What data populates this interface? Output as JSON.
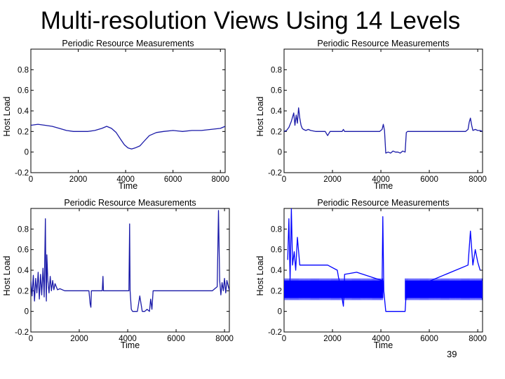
{
  "slide": {
    "title": "Multi-resolution Views Using 14 Levels",
    "page_number": "39"
  },
  "colors": {
    "series": "#1a1aa8",
    "noise": "#0000ff",
    "axis": "#000000"
  },
  "chart_data": [
    {
      "type": "line",
      "panel": "top-left",
      "title": "Periodic Resource Measurements",
      "xlabel": "Time",
      "ylabel": "Host Load",
      "xlim": [
        0,
        8200
      ],
      "ylim": [
        -0.2,
        1.0
      ],
      "xticks": [
        "0",
        "2000",
        "4000",
        "6000",
        "8000"
      ],
      "yticks": [
        "-0.2",
        "0",
        "0.2",
        "0.4",
        "0.6",
        "0.8"
      ],
      "series": [
        {
          "x": [
            0,
            300,
            600,
            900,
            1200,
            1500,
            1800,
            2100,
            2400,
            2700,
            3000,
            3200,
            3400,
            3600,
            3800,
            3950,
            4100,
            4250,
            4400,
            4600,
            4800,
            5000,
            5300,
            5600,
            6000,
            6400,
            6800,
            7200,
            7600,
            8000,
            8200
          ],
          "y": [
            0.26,
            0.27,
            0.26,
            0.25,
            0.23,
            0.21,
            0.2,
            0.2,
            0.2,
            0.21,
            0.23,
            0.25,
            0.23,
            0.19,
            0.12,
            0.07,
            0.04,
            0.03,
            0.04,
            0.06,
            0.11,
            0.16,
            0.19,
            0.2,
            0.21,
            0.2,
            0.21,
            0.21,
            0.22,
            0.23,
            0.25
          ]
        }
      ]
    },
    {
      "type": "line",
      "panel": "top-right",
      "title": "Periodic Resource Measurements",
      "xlabel": "Time",
      "ylabel": "Host Load",
      "xlim": [
        0,
        8200
      ],
      "ylim": [
        -0.2,
        1.0
      ],
      "xticks": [
        "0",
        "2000",
        "4000",
        "6000",
        "8000"
      ],
      "yticks": [
        "-0.2",
        "0",
        "0.2",
        "0.4",
        "0.6",
        "0.8"
      ],
      "series": [
        {
          "x": [
            0,
            100,
            200,
            300,
            400,
            450,
            500,
            550,
            600,
            650,
            700,
            750,
            800,
            900,
            1000,
            1100,
            1300,
            1500,
            1700,
            1800,
            1900,
            2000,
            2200,
            2300,
            2400,
            2450,
            2500,
            2600,
            2800,
            3000,
            3200,
            3400,
            3600,
            3800,
            3950,
            4050,
            4100,
            4150,
            4200,
            4300,
            4400,
            4500,
            4600,
            4700,
            4800,
            4900,
            5000,
            5050,
            5100,
            5300,
            5600,
            6000,
            6400,
            6800,
            7200,
            7500,
            7600,
            7650,
            7700,
            7750,
            7800,
            7900,
            8000,
            8100,
            8200
          ],
          "y": [
            0.2,
            0.21,
            0.24,
            0.3,
            0.38,
            0.26,
            0.36,
            0.28,
            0.43,
            0.33,
            0.26,
            0.23,
            0.22,
            0.21,
            0.22,
            0.21,
            0.2,
            0.2,
            0.2,
            0.16,
            0.2,
            0.2,
            0.2,
            0.2,
            0.2,
            0.22,
            0.2,
            0.2,
            0.2,
            0.2,
            0.2,
            0.2,
            0.2,
            0.2,
            0.2,
            0.22,
            0.27,
            0.21,
            -0.01,
            0.0,
            -0.01,
            0.01,
            0.0,
            0.0,
            -0.01,
            0.01,
            0.0,
            0.19,
            0.2,
            0.2,
            0.2,
            0.2,
            0.2,
            0.2,
            0.2,
            0.2,
            0.22,
            0.29,
            0.33,
            0.26,
            0.21,
            0.22,
            0.21,
            0.21,
            0.2
          ]
        }
      ]
    },
    {
      "type": "line",
      "panel": "bottom-left",
      "title": "Periodic Resource Measurements",
      "xlabel": "Time",
      "ylabel": "Host Load",
      "xlim": [
        0,
        8200
      ],
      "ylim": [
        -0.2,
        1.0
      ],
      "xticks": [
        "0",
        "2000",
        "4000",
        "6000",
        "8000"
      ],
      "yticks": [
        "-0.2",
        "0",
        "0.2",
        "0.4",
        "0.6",
        "0.8"
      ],
      "series": [
        {
          "description_free": true,
          "x": [
            0,
            50,
            100,
            150,
            200,
            250,
            300,
            350,
            400,
            450,
            500,
            550,
            600,
            620,
            640,
            660,
            700,
            750,
            800,
            850,
            900,
            950,
            1000,
            1100,
            1200,
            1400,
            1600,
            1800,
            2000,
            2200,
            2400,
            2450,
            2480,
            2500,
            2600,
            2800,
            2950,
            2980,
            3000,
            3200,
            3400,
            3600,
            3800,
            4000,
            4050,
            4080,
            4100,
            4150,
            4200,
            4400,
            4500,
            4600,
            4700,
            4800,
            4900,
            4950,
            5000,
            5050,
            5100,
            5300,
            5600,
            6000,
            6400,
            6800,
            7200,
            7500,
            7700,
            7750,
            7800,
            7850,
            7900,
            7950,
            8000,
            8050,
            8100,
            8200
          ],
          "y": [
            0.3,
            0.15,
            0.35,
            0.1,
            0.32,
            0.18,
            0.38,
            0.12,
            0.36,
            0.16,
            0.42,
            0.14,
            0.9,
            0.3,
            0.1,
            0.55,
            0.3,
            0.18,
            0.34,
            0.2,
            0.3,
            0.21,
            0.27,
            0.21,
            0.22,
            0.2,
            0.2,
            0.2,
            0.2,
            0.2,
            0.2,
            0.07,
            0.04,
            0.2,
            0.2,
            0.2,
            0.2,
            0.34,
            0.2,
            0.2,
            0.2,
            0.2,
            0.2,
            0.2,
            0.2,
            0.85,
            0.2,
            0.02,
            0.0,
            0.0,
            0.15,
            0.0,
            0.0,
            0.02,
            0.0,
            0.12,
            0.02,
            0.2,
            0.2,
            0.2,
            0.2,
            0.2,
            0.2,
            0.2,
            0.2,
            0.2,
            0.24,
            0.98,
            0.3,
            0.16,
            0.28,
            0.2,
            0.32,
            0.18,
            0.3,
            0.2
          ]
        }
      ]
    },
    {
      "type": "line",
      "panel": "bottom-right",
      "title": "Periodic Resource Measurements",
      "xlabel": "Time",
      "ylabel": "Host Load",
      "xlim": [
        0,
        8200
      ],
      "ylim": [
        -0.2,
        1.0
      ],
      "xticks": [
        "0",
        "2000",
        "4000",
        "6000",
        "8000"
      ],
      "yticks": [
        "-0.2",
        "0",
        "0.2",
        "0.4",
        "0.6",
        "0.8"
      ],
      "noise_band": {
        "x_ranges": [
          [
            0,
            4100
          ],
          [
            5000,
            8200
          ]
        ],
        "y_low": 0.13,
        "y_high": 0.3
      },
      "series": [
        {
          "x": [
            150,
            200,
            250,
            300,
            350,
            420,
            480,
            550,
            650,
            800,
            1000,
            1200,
            1400,
            1600,
            1800,
            2200,
            2450,
            2500,
            3000,
            4050,
            4080,
            4120,
            4200,
            4600,
            4900,
            5000,
            5050,
            7600,
            7700,
            7800,
            7900,
            8000,
            8100
          ],
          "y": [
            0.5,
            0.9,
            0.3,
            1.0,
            0.45,
            0.58,
            0.4,
            0.72,
            0.45,
            0.45,
            0.45,
            0.45,
            0.45,
            0.45,
            0.45,
            0.4,
            0.05,
            0.36,
            0.38,
            0.3,
            0.92,
            0.2,
            0.0,
            0.0,
            0.0,
            0.0,
            0.2,
            0.45,
            0.78,
            0.45,
            0.6,
            0.48,
            0.4
          ]
        }
      ]
    }
  ]
}
